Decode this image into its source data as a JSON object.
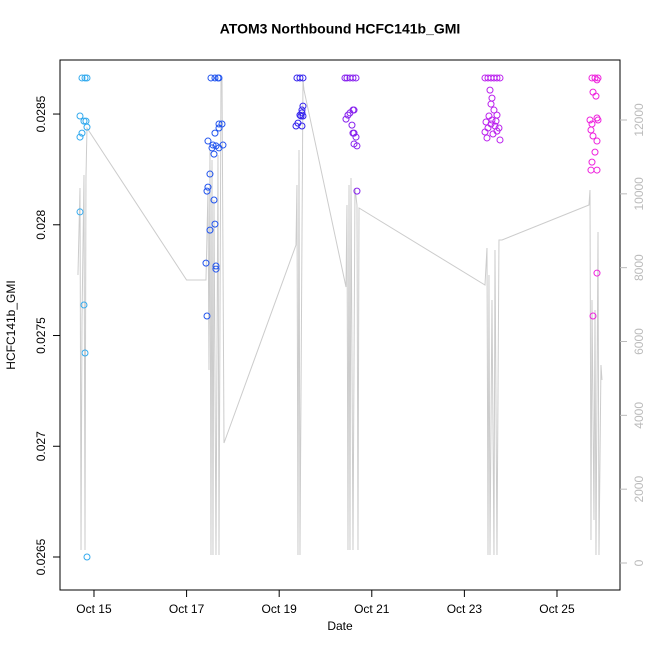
{
  "chart_data": {
    "type": "scatter",
    "title": "ATOM3 Northbound HCFC141b_GMI",
    "xlabel": "Date",
    "ylabel": "HCFC141b_GMI",
    "xlim": [
      14.266,
      26.361
    ],
    "ylim": [
      0.026351,
      0.028744
    ],
    "y2lim": [
      -731,
      13625
    ],
    "xticks": [
      {
        "value": 15,
        "label": "Oct 15"
      },
      {
        "value": 17,
        "label": "Oct 17"
      },
      {
        "value": 19,
        "label": "Oct 19"
      },
      {
        "value": 21,
        "label": "Oct 21"
      },
      {
        "value": 23,
        "label": "Oct 23"
      },
      {
        "value": 25,
        "label": "Oct 25"
      }
    ],
    "yticks": [
      0.0265,
      0.027,
      0.0275,
      0.028,
      0.0285
    ],
    "y2ticks": [
      0,
      2000,
      4000,
      6000,
      8000,
      10000,
      12000
    ],
    "y2color": "#bbbbbb",
    "series": [
      {
        "type": "scatter",
        "color": "#33aaee",
        "x": [
          14.741,
          14.806,
          14.849,
          14.698,
          14.741,
          14.698,
          14.784,
          14.827,
          14.849,
          14.698,
          14.784,
          14.806,
          14.849
        ],
        "values": [
          0.028663,
          0.028663,
          0.028663,
          0.028491,
          0.028414,
          0.028396,
          0.028468,
          0.028468,
          0.028441,
          0.028058,
          0.027638,
          0.027421,
          0.0265
        ]
      },
      {
        "type": "scatter",
        "color": "#2255ee",
        "x": [
          17.527,
          17.613,
          17.7,
          17.678,
          17.7,
          17.765,
          17.7,
          17.613,
          17.462,
          17.57,
          17.549,
          17.635,
          17.7,
          17.786,
          17.592,
          17.505,
          17.462,
          17.441,
          17.592,
          17.505,
          17.613,
          17.635,
          17.419,
          17.635,
          17.441
        ],
        "values": [
          0.028663,
          0.028663,
          0.028663,
          0.028663,
          0.028455,
          0.028455,
          0.028437,
          0.028414,
          0.028378,
          0.02836,
          0.028347,
          0.028356,
          0.028347,
          0.02836,
          0.028319,
          0.028229,
          0.02817,
          0.028152,
          0.028112,
          0.027976,
          0.028003,
          0.027814,
          0.027827,
          0.0278,
          0.027588
        ]
      },
      {
        "type": "scatter",
        "color": "#3322ee",
        "x": [
          19.384,
          19.449,
          19.514,
          19.406,
          19.363,
          19.449,
          19.492,
          19.471,
          19.514,
          19.492,
          19.492,
          19.514
        ],
        "values": [
          0.028663,
          0.028663,
          0.028663,
          0.028459,
          0.028446,
          0.028495,
          0.028518,
          0.028491,
          0.028491,
          0.028446,
          0.028505,
          0.028536
        ]
      },
      {
        "type": "scatter",
        "color": "#8822ee",
        "x": [
          20.464,
          20.529,
          20.594,
          20.659,
          20.421,
          20.486,
          20.443,
          20.529,
          20.594,
          20.616,
          20.572,
          20.616,
          20.659,
          20.594,
          20.68,
          20.616,
          20.68
        ],
        "values": [
          0.028663,
          0.028663,
          0.028663,
          0.028663,
          0.028663,
          0.028495,
          0.028477,
          0.028505,
          0.028518,
          0.028518,
          0.02845,
          0.028414,
          0.028396,
          0.028414,
          0.028356,
          0.028365,
          0.028152
        ]
      },
      {
        "type": "scatter",
        "color": "#bb22ee",
        "x": [
          23.445,
          23.51,
          23.575,
          23.639,
          23.704,
          23.769,
          23.553,
          23.596,
          23.575,
          23.639,
          23.531,
          23.704,
          23.467,
          23.575,
          23.661,
          23.51,
          23.747,
          23.445,
          23.618,
          23.704,
          23.488,
          23.769,
          23.596,
          23.683
        ],
        "values": [
          0.028663,
          0.028663,
          0.028663,
          0.028663,
          0.028663,
          0.028663,
          0.028608,
          0.028572,
          0.028545,
          0.028518,
          0.028491,
          0.028495,
          0.028464,
          0.028455,
          0.028446,
          0.028437,
          0.028437,
          0.028419,
          0.02841,
          0.028423,
          0.028392,
          0.028383,
          0.028473,
          0.028468
        ]
      },
      {
        "type": "scatter",
        "color": "#ee22dd",
        "x": [
          25.756,
          25.821,
          25.886,
          25.864,
          25.778,
          25.842,
          25.713,
          25.756,
          25.864,
          25.886,
          25.734,
          25.778,
          25.864,
          25.821,
          25.756,
          25.734,
          25.864,
          25.864,
          25.778
        ],
        "values": [
          0.028663,
          0.028663,
          0.028663,
          0.028654,
          0.028599,
          0.028581,
          0.028473,
          0.028455,
          0.028482,
          0.028473,
          0.028428,
          0.028401,
          0.028378,
          0.028328,
          0.028283,
          0.028247,
          0.028247,
          0.027782,
          0.027588
        ]
      },
      {
        "type": "line",
        "color": "#cccccc",
        "axis": "y2",
        "x": [
          14.654,
          14.698,
          14.72,
          14.741,
          14.784,
          14.806,
          14.827,
          14.849,
          17.0,
          17.419,
          17.462,
          17.484,
          17.505,
          17.527,
          17.549,
          17.57,
          17.592,
          17.635,
          17.678,
          17.7,
          17.743,
          17.765,
          17.808,
          19.363,
          19.384,
          19.406,
          19.428,
          19.449,
          19.514,
          19.536,
          20.443,
          20.464,
          20.486,
          20.508,
          20.529,
          20.551,
          20.594,
          20.637,
          20.68,
          20.702,
          20.724,
          23.445,
          23.488,
          23.51,
          23.531,
          23.553,
          23.596,
          23.639,
          23.661,
          23.704,
          23.747,
          23.812,
          25.691,
          25.713,
          25.734,
          25.756,
          25.799,
          25.821,
          25.842,
          25.886,
          25.907,
          25.95,
          25.972
        ],
        "values": [
          7801,
          10158,
          352,
          6582,
          10510,
          352,
          10429,
          11783,
          7666,
          7666,
          10104,
          5228,
          11187,
          217,
          10916,
          217,
          9833,
          217,
          11052,
          217,
          13084,
          13084,
          3251,
          8614,
          10239,
          217,
          11187,
          217,
          13084,
          12813,
          7476,
          9697,
          352,
          10239,
          352,
          10429,
          352,
          10158,
          9697,
          352,
          9616,
          7530,
          8533,
          217,
          7801,
          217,
          7124,
          217,
          8479,
          217,
          8749,
          8749,
          9697,
          10104,
          623,
          7124,
          1165,
          6853,
          217,
          8966,
          217,
          5363,
          4957
        ]
      }
    ]
  }
}
